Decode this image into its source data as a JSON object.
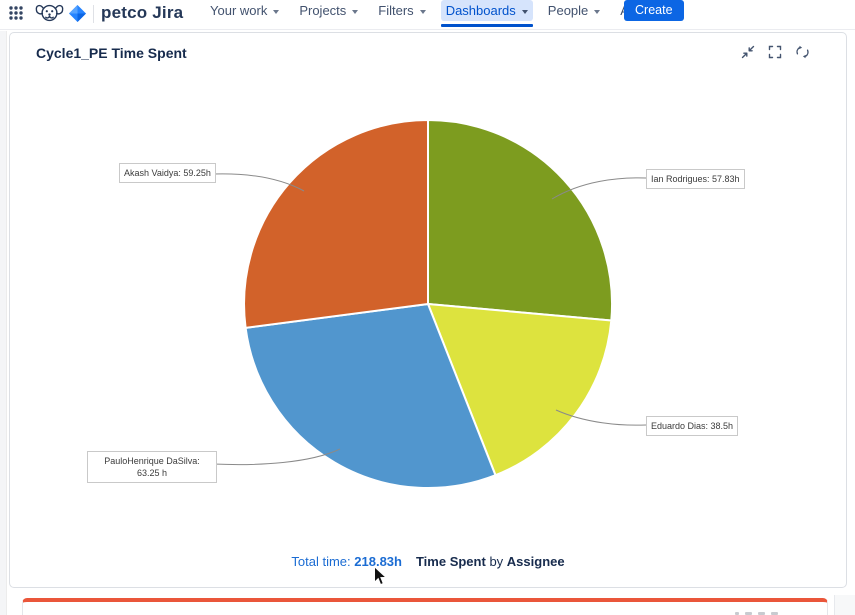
{
  "navbar": {
    "brand": "petco Jira",
    "items": [
      {
        "label": "Your work"
      },
      {
        "label": "Projects"
      },
      {
        "label": "Filters"
      },
      {
        "label": "Dashboards"
      },
      {
        "label": "People"
      },
      {
        "label": "Apps"
      }
    ],
    "active_item": "Dashboards",
    "create_label": "Create",
    "accent_color": "#0052cc"
  },
  "gadget": {
    "title": "Cycle1_PE Time Spent"
  },
  "chart_data": {
    "type": "pie",
    "title": "Time Spent by Assignee",
    "caption": {
      "series": "Time Spent",
      "connector": "by",
      "group": "Assignee"
    },
    "total_label": "Total time:",
    "total_value": "218.83h",
    "total_hours": 218.83,
    "unit": "hours",
    "start_angle_deg": 0,
    "direction": "clockwise",
    "legend_position": "callout-labels",
    "slices": [
      {
        "name": "Ian Rodrigues",
        "value": 57.83,
        "display": "Ian Rodrigues: 57.83h",
        "color": "#7d9c1f"
      },
      {
        "name": "Eduardo Dias",
        "value": 38.5,
        "display": "Eduardo Dias: 38.5h",
        "color": "#dde33e"
      },
      {
        "name": "PauloHenrique DaSilva",
        "value": 63.25,
        "display": "PauloHenrique DaSilva: 63.25 h",
        "color": "#5196ce"
      },
      {
        "name": "Akash Vaidya",
        "value": 59.25,
        "display": "Akash Vaidya: 59.25h",
        "color": "#d2622a"
      }
    ]
  }
}
